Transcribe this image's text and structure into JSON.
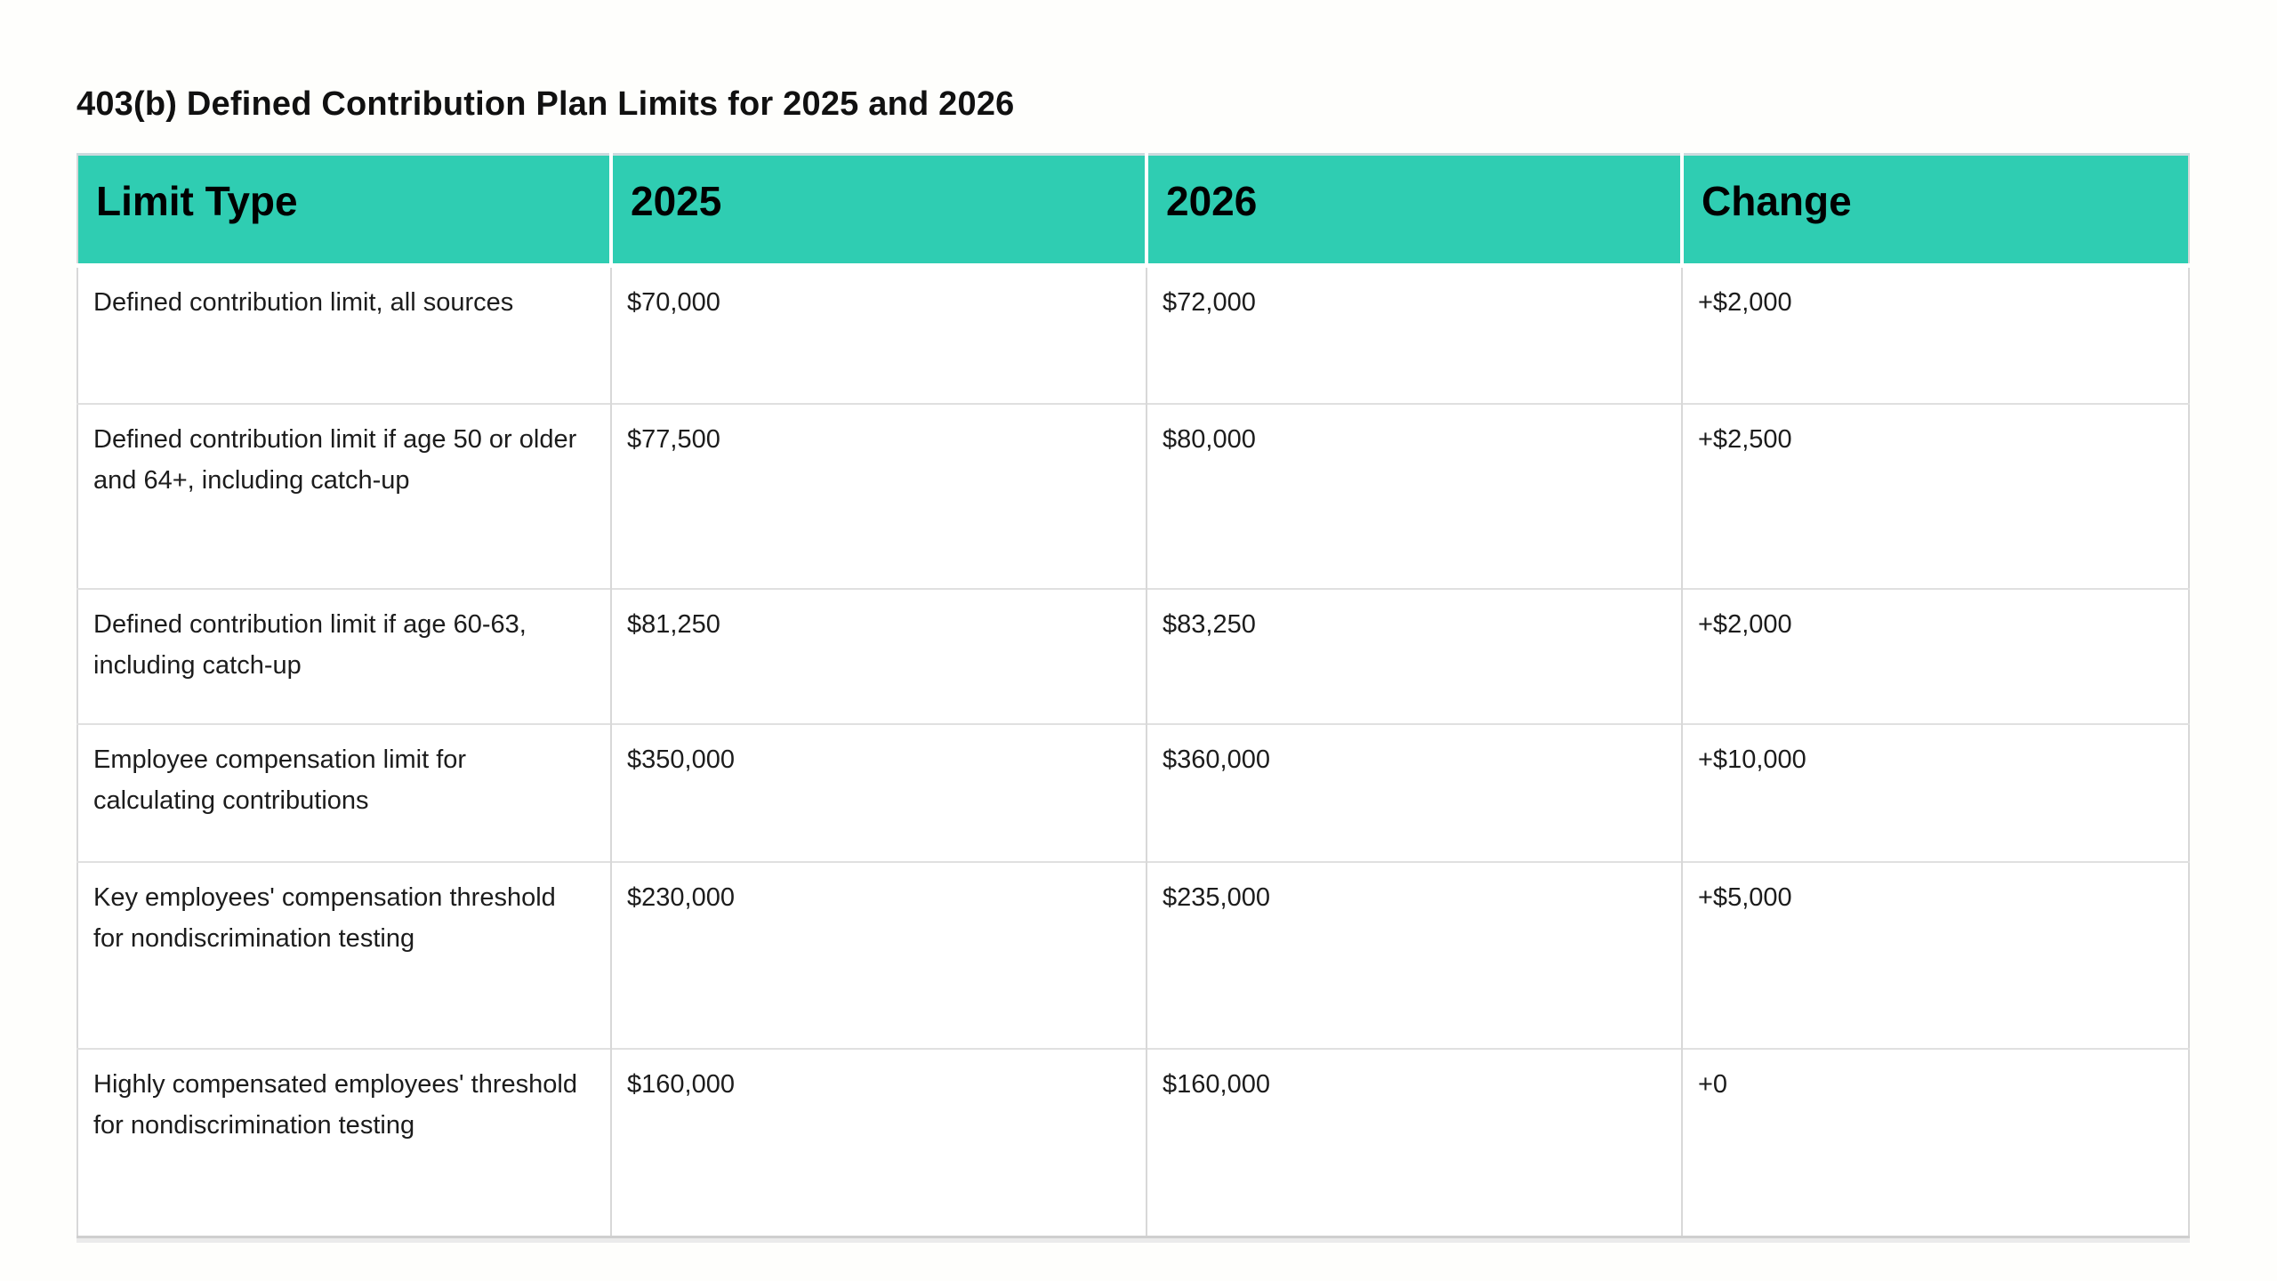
{
  "page": {
    "title": "403(b) Defined Contribution Plan Limits for 2025 and 2026"
  },
  "table": {
    "columns": [
      "Limit Type",
      "2025",
      "2026",
      "Change"
    ],
    "rows": [
      {
        "limit_type": "Defined contribution limit, all sources",
        "y2025": "$70,000",
        "y2026": "$72,000",
        "change": "+$2,000"
      },
      {
        "limit_type": "Defined contribution limit if age 50 or older and 64+, including catch-up",
        "y2025": "$77,500",
        "y2026": "$80,000",
        "change": "+$2,500"
      },
      {
        "limit_type": "Defined contribution limit if age 60-63, including catch-up",
        "y2025": "$81,250",
        "y2026": "$83,250",
        "change": "+$2,000"
      },
      {
        "limit_type": "Employee compensation limit for calculating contributions",
        "y2025": "$350,000",
        "y2026": "$360,000",
        "change": "+$10,000"
      },
      {
        "limit_type": "Key employees' compensation threshold for nondiscrimination testing",
        "y2025": "$230,000",
        "y2026": "$235,000",
        "change": "+$5,000"
      },
      {
        "limit_type": "Highly compensated employees' threshold for nondiscrimination testing",
        "y2025": "$160,000",
        "y2026": "$160,000",
        "change": "+0"
      }
    ],
    "colors": {
      "header_bg": "#2fcdb2",
      "header_text": "#000000",
      "body_text": "#1c1c1c",
      "border": "#d8d8d8"
    }
  }
}
